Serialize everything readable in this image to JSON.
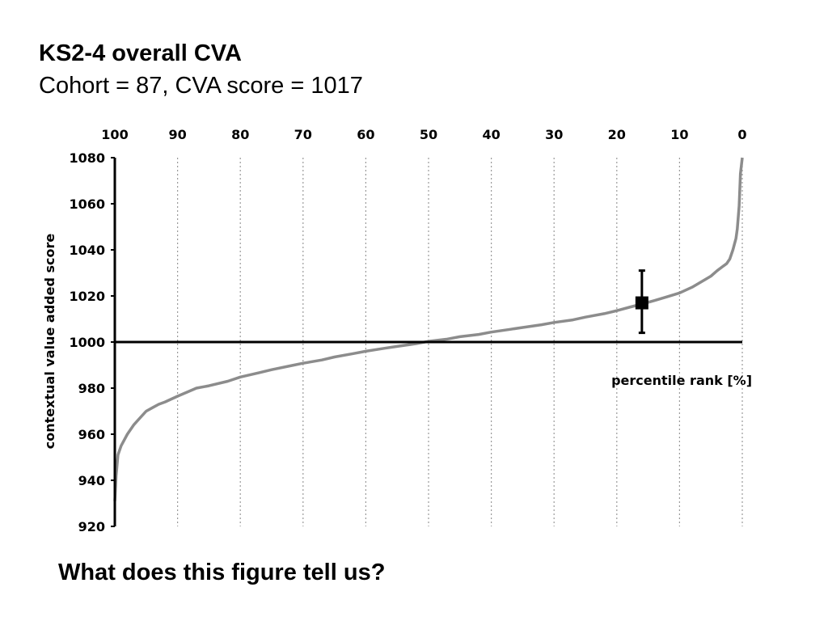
{
  "header": {
    "title": "KS2-4 overall CVA",
    "subtitle": "Cohort = 87, CVA score = 1017"
  },
  "footer": {
    "question": "What does this figure tell us?"
  },
  "colors": {
    "curve": "#8c8c8c",
    "axis": "#000000",
    "grid": "#9a9a9a",
    "marker": "#000000"
  },
  "chart_data": {
    "type": "line",
    "title": "",
    "xlabel": "percentile rank [%]",
    "ylabel": "contextual value added score",
    "x_axis_position": "top",
    "x_reversed": true,
    "xlim": [
      100,
      0
    ],
    "ylim": [
      920,
      1080
    ],
    "x_ticks": [
      100,
      90,
      80,
      70,
      60,
      50,
      40,
      30,
      20,
      10,
      0
    ],
    "y_ticks": [
      1080,
      1060,
      1040,
      1020,
      1000,
      980,
      960,
      940,
      920
    ],
    "grid": "vertical dotted",
    "reference_line": {
      "y": 1000
    },
    "series": [
      {
        "x": [
          100,
          99.8,
          99.5,
          99,
          98,
          97,
          96,
          95,
          94,
          93,
          92,
          90,
          88,
          87,
          85,
          82,
          80,
          77,
          75,
          72,
          70,
          67,
          65,
          62,
          60,
          57,
          55,
          52,
          50,
          47,
          45,
          42,
          40,
          37,
          35,
          32,
          30,
          27,
          25,
          22,
          20,
          18,
          16,
          14,
          12,
          10,
          8,
          6,
          5,
          4,
          3,
          2.5,
          2,
          1.5,
          1,
          0.8,
          0.5,
          0.3,
          0
        ],
        "y": [
          931,
          942,
          951,
          955,
          960,
          964,
          967,
          970,
          971.5,
          973,
          974,
          976.5,
          978.8,
          980,
          981,
          983,
          984.8,
          986.7,
          988,
          989.7,
          990.8,
          992.2,
          993.5,
          995,
          996,
          997.3,
          998.1,
          999.3,
          1000.3,
          1001.3,
          1002.3,
          1003.3,
          1004.3,
          1005.5,
          1006.3,
          1007.5,
          1008.5,
          1009.6,
          1010.8,
          1012.3,
          1013.6,
          1015.1,
          1016.5,
          1018,
          1019.6,
          1021.3,
          1023.8,
          1027,
          1028.6,
          1031,
          1033,
          1034,
          1036,
          1040,
          1045,
          1049,
          1059,
          1073,
          1080
        ]
      }
    ],
    "school_point": {
      "x": 16,
      "y": 1017,
      "y_low": 1004,
      "y_high": 1031
    }
  }
}
